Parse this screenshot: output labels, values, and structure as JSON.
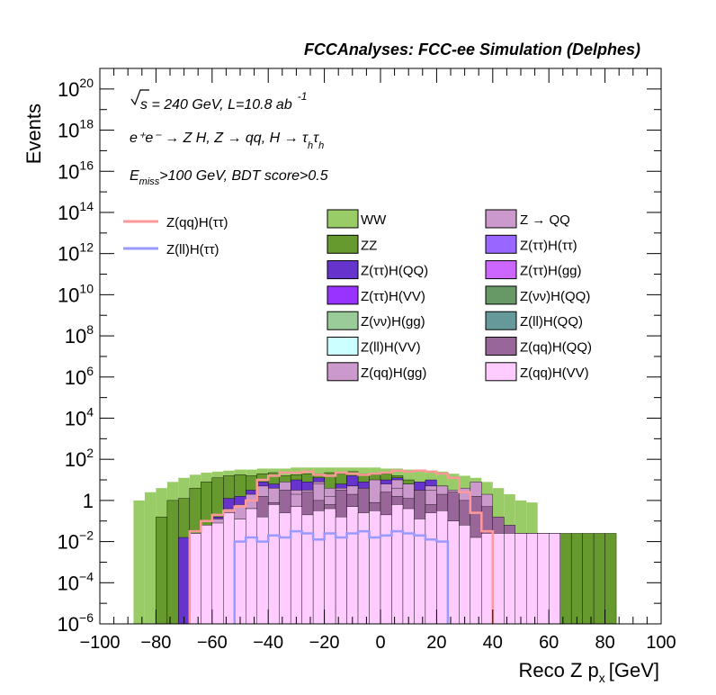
{
  "chart_data": {
    "type": "bar",
    "stacked": true,
    "header": "FCCAnalyses: FCC-ee Simulation (Delphes)",
    "xlabel": "Reco Z p",
    "xlabel_sub": "x",
    "xlabel_unit": "[GeV]",
    "ylabel": "Events",
    "xlim": [
      -100,
      100
    ],
    "ylim_log10": [
      -6,
      21
    ],
    "yscale": "log",
    "bin_width": 4,
    "x_ticks": [
      "−100",
      "−80",
      "−60",
      "−40",
      "−20",
      "0",
      "20",
      "40",
      "60",
      "80",
      "100"
    ],
    "y_ticks": [
      {
        "exp": 20,
        "base": "10",
        "sup": "20"
      },
      {
        "exp": 18,
        "base": "10",
        "sup": "18"
      },
      {
        "exp": 16,
        "base": "10",
        "sup": "16"
      },
      {
        "exp": 14,
        "base": "10",
        "sup": "14"
      },
      {
        "exp": 12,
        "base": "10",
        "sup": "12"
      },
      {
        "exp": 10,
        "base": "10",
        "sup": "10"
      },
      {
        "exp": 8,
        "base": "10",
        "sup": "8"
      },
      {
        "exp": 6,
        "base": "10",
        "sup": "6"
      },
      {
        "exp": 4,
        "base": "10",
        "sup": "4"
      },
      {
        "exp": 2,
        "base": "10",
        "sup": "2"
      },
      {
        "exp": 0,
        "base": "1",
        "sup": ""
      },
      {
        "exp": -2,
        "base": "10",
        "sup": "−2"
      },
      {
        "exp": -4,
        "base": "10",
        "sup": "−4"
      },
      {
        "exp": -6,
        "base": "10",
        "sup": "−6"
      }
    ],
    "annotations": {
      "sqrt_s": "s",
      "energy_lumi": " = 240 GeV, L=10.8 ab",
      "lumi_exp": "-1",
      "process": "e⁺e⁻ → Z H, Z  → qq, H  → τ",
      "process_sub1": "h",
      "process_tau": "τ",
      "process_sub2": "h",
      "cut_E": "E",
      "cut_miss": "miss",
      "cut_rest": ">100 GeV, BDT score>0.5"
    },
    "signal_lines": [
      {
        "name": "Z(qq)H(ττ)",
        "color": "#ff9999",
        "log10": [
          -1.5,
          -1.0,
          -0.7,
          -0.5,
          -0.3,
          0.0,
          1.0,
          1.2,
          1.35,
          1.35,
          1.4,
          1.25,
          1.2,
          1.35,
          1.3,
          1.25,
          1.3,
          1.35,
          1.45,
          1.4,
          1.45,
          1.4,
          1.3,
          1.1,
          0.4,
          -0.6,
          -1.5
        ]
      },
      {
        "name": "Z(ll)H(ττ)",
        "color": "#9999ff",
        "log10": [
          -2.0,
          -1.8,
          -2.0,
          -1.7,
          -1.8,
          -1.5,
          -1.6,
          -1.9,
          -1.6,
          -1.8,
          -1.6,
          -1.5,
          -1.8,
          -1.7,
          -1.5,
          -1.6,
          -1.7,
          -1.9,
          -2.0
        ]
      }
    ],
    "line_starts": {
      "Z(qq)H(ττ)": -68,
      "Z(ll)H(ττ)": -52
    },
    "series": [
      {
        "name": "WW",
        "color": "#99cc66",
        "x_start": -96,
        "values": []
      },
      {
        "name": "ZZ",
        "color": "#66992e",
        "x_start": -84,
        "log10": [
          -6.0,
          -0.8,
          0.0,
          0.1,
          0.6,
          0.9,
          1.1,
          1.2,
          1.25,
          1.2,
          1.3,
          1.35,
          1.2,
          1.25,
          1.3,
          1.3,
          1.35,
          1.3,
          1.4,
          1.3,
          1.25,
          1.3,
          1.2,
          1.0,
          0.7,
          0.3,
          0.0,
          -0.4,
          -0.8,
          -1.2,
          -1.5,
          -1.6,
          -1.6,
          -1.6,
          -1.6,
          -1.6,
          -1.6,
          -1.6,
          -1.6,
          -1.6,
          -1.6,
          -1.6
        ]
      },
      {
        "name": "Z(ττ)H(QQ)",
        "color": "#6633cc",
        "x_start": -72,
        "log10": [
          -1.8,
          -1.6,
          -1.4,
          -0.8,
          0.1,
          0.2,
          0.5,
          0.9,
          0.8,
          0.6,
          1.0,
          0.9,
          1.1,
          0.4,
          0.8,
          1.2,
          0.9,
          0.7,
          1.0,
          1.1,
          0.8,
          0.9,
          1.0,
          0.7,
          0.3,
          -0.8,
          -1.5,
          -1.6,
          -1.6,
          -1.6,
          -1.6,
          -1.6,
          -1.6,
          -1.6
        ]
      },
      {
        "name": "Z(ττ)H(VV)",
        "color": "#9933ff",
        "x_start": -60,
        "log10": [
          -1.8,
          -1.2,
          -1.6,
          -0.7,
          -0.3,
          -1.0,
          -0.4,
          -0.6,
          -1.1,
          -0.8,
          -0.5,
          -0.9,
          -1.0,
          -0.6,
          -0.4,
          -0.3,
          -0.7,
          -0.4,
          -0.6,
          -0.2,
          -0.5,
          -0.3,
          -0.9
        ]
      },
      {
        "name": "Z(νν)H(gg)",
        "color": "#99cc99",
        "x_start": -36,
        "log10": [
          -1.1,
          -1.5,
          -1.4,
          -1.3,
          -1.6,
          -1.7,
          -1.4,
          -1.3
        ]
      },
      {
        "name": "Z(ll)H(VV)",
        "color": "#ccffff",
        "x_start": 0,
        "log10": [
          -1.7,
          -1.9,
          -1.6
        ]
      },
      {
        "name": "Z(qq)H(gg)",
        "color": "#cc99cc",
        "x_start": -64,
        "log10": [
          -1.5,
          -0.9,
          -0.4,
          -0.2,
          0.3,
          0.7,
          0.2,
          0.8,
          0.5,
          0.3,
          0.9,
          0.6,
          0.2,
          0.7,
          0.5,
          0.3,
          0.8,
          1.0,
          0.5,
          0.3,
          0.7,
          0.6,
          0.5,
          -0.2,
          -0.9,
          -1.5,
          -1.6,
          -1.6,
          -1.6,
          -1.6
        ]
      },
      {
        "name": "Z → QQ",
        "color": "#cc99cc",
        "x_start": -40,
        "log10": [
          0.6,
          0.9,
          0.3,
          0.5,
          0.8,
          0.2,
          0.6,
          0.7,
          0.5,
          1.0,
          0.4,
          0.6,
          0.8,
          0.3,
          0.5,
          0.7,
          0.4,
          0.6,
          0.9,
          0.3
        ]
      },
      {
        "name": "Z(ττ)H(ττ)",
        "color": "#9966ff",
        "values": []
      },
      {
        "name": "Z(ττ)H(gg)",
        "color": "#cc66ff",
        "x_start": -56,
        "log10": [
          -1.3,
          -0.9,
          -1.1,
          -0.6,
          -1.0,
          -0.8,
          -1.3,
          -0.7,
          -0.9,
          -1.1,
          -1.2,
          -0.8,
          -1.0,
          -0.9,
          -0.6,
          -1.1,
          -0.7,
          -0.9,
          -0.5,
          -0.8,
          -0.6,
          -0.9,
          -1.2,
          -1.5,
          -1.6,
          -1.6,
          -1.6,
          -1.6,
          -1.6
        ]
      },
      {
        "name": "Z(νν)H(QQ)",
        "color": "#669966",
        "x_start": -48,
        "log10": [
          -1.9,
          -1.6,
          -1.8,
          -1.9,
          -1.4,
          -1.7,
          -2.0,
          -1.6,
          -1.5,
          -1.8,
          -2.0,
          -1.7,
          -1.6,
          -1.8,
          -1.9,
          -2.0,
          -1.8,
          -1.6,
          -1.7,
          -1.9,
          -1.8,
          -1.7,
          -1.6,
          -1.8
        ]
      },
      {
        "name": "Z(ll)H(QQ)",
        "color": "#669999",
        "x_start": 16,
        "log10": [
          -1.2,
          -1.5,
          -1.1,
          -1.6,
          -1.3,
          -1.8,
          -1.7
        ]
      },
      {
        "name": "Z(qq)H(QQ)",
        "color": "#996699",
        "x_start": -48,
        "log10": [
          -0.4,
          0.2,
          -0.1,
          0.5,
          -0.3,
          0.4,
          0.0,
          -0.2,
          0.5,
          0.3,
          0.6,
          -0.1,
          0.4,
          0.2,
          0.1,
          0.5,
          -0.2,
          0.3,
          0.4,
          0.0,
          0.2,
          -0.3,
          -0.8,
          -1.2
        ]
      },
      {
        "name": "Z(qq)H(VV)",
        "color": "#ffccff",
        "x_start": -68,
        "log10": [
          -1.6,
          -1.2,
          -1.1,
          -0.6,
          -0.9,
          -0.4,
          -0.8,
          -0.2,
          -0.6,
          -0.3,
          -0.7,
          -0.5,
          -0.4,
          -0.8,
          -0.3,
          -0.6,
          -0.5,
          -0.7,
          -0.2,
          -0.4,
          -0.9,
          -0.6,
          -0.5,
          -1.0,
          -1.2,
          -1.8,
          -1.6,
          -1.6,
          -1.6,
          -1.6,
          -1.6,
          -1.6,
          -1.6
        ]
      }
    ],
    "legend": {
      "left": [
        {
          "name": "Z(qq)H(ττ)",
          "kind": "line",
          "color": "#ff9999"
        },
        {
          "name": "Z(ll)H(ττ)",
          "kind": "line",
          "color": "#9999ff"
        }
      ],
      "col1": [
        {
          "name": "WW",
          "color": "#99cc66"
        },
        {
          "name": "ZZ",
          "color": "#66992e"
        },
        {
          "name": "Z(ττ)H(QQ)",
          "color": "#6633cc"
        },
        {
          "name": "Z(ττ)H(VV)",
          "color": "#9933ff"
        },
        {
          "name": "Z(νν)H(gg)",
          "color": "#99cc99"
        },
        {
          "name": "Z(ll)H(VV)",
          "color": "#ccffff"
        },
        {
          "name": "Z(qq)H(gg)",
          "color": "#cc99cc"
        }
      ],
      "col2": [
        {
          "name": "Z → QQ",
          "color": "#cc99cc"
        },
        {
          "name": "Z(ττ)H(ττ)",
          "color": "#9966ff"
        },
        {
          "name": "Z(ττ)H(gg)",
          "color": "#cc66ff"
        },
        {
          "name": "Z(νν)H(QQ)",
          "color": "#669966"
        },
        {
          "name": "Z(ll)H(QQ)",
          "color": "#669999"
        },
        {
          "name": "Z(qq)H(QQ)",
          "color": "#996699"
        },
        {
          "name": "Z(qq)H(VV)",
          "color": "#ffccff"
        }
      ]
    },
    "ww_envelope_log10": [
      -6.0,
      -6.0,
      -6.0,
      0.0,
      0.4,
      0.6,
      0.9,
      1.1,
      1.25,
      1.35,
      1.4,
      1.45,
      1.5,
      1.5,
      1.55,
      1.55,
      1.55,
      1.6,
      1.6,
      1.6,
      1.6,
      1.6,
      1.6,
      1.6,
      1.6,
      1.55,
      1.55,
      1.5,
      1.45,
      1.45,
      1.4,
      1.3,
      1.2,
      1.1,
      0.9,
      0.6,
      0.3,
      0.0,
      -0.1,
      -6.0,
      -6.0,
      -6.0
    ]
  }
}
